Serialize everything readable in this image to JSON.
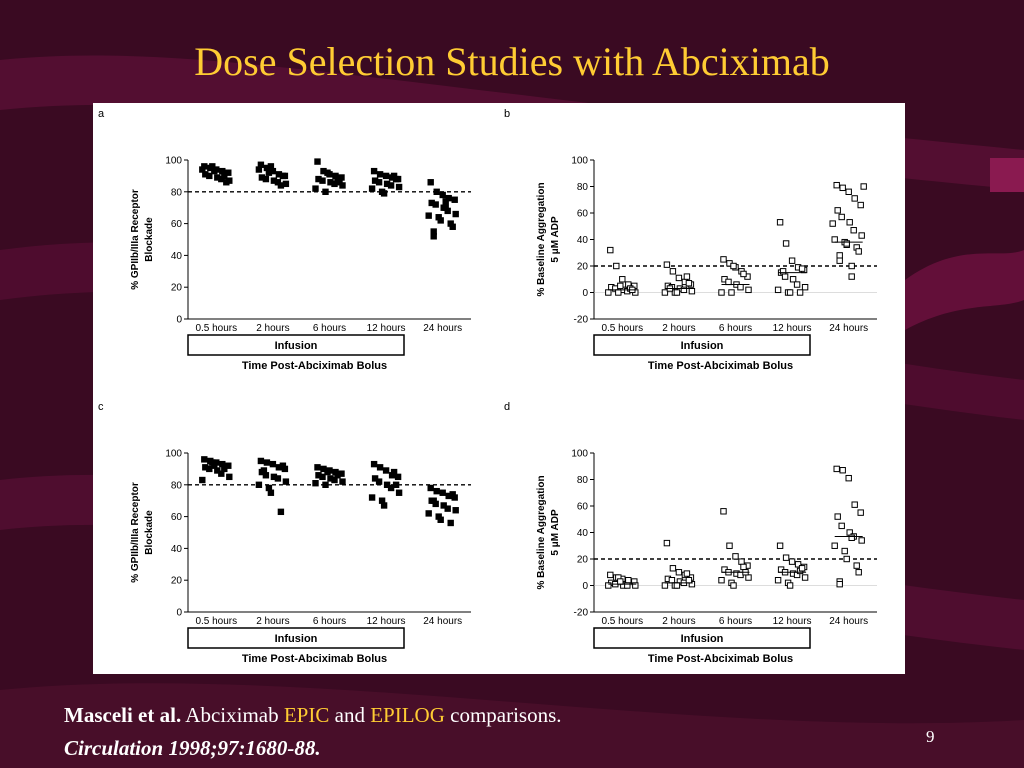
{
  "slide": {
    "title": "Dose Selection Studies with Abciximab",
    "citation": {
      "author": "Masceli et al.",
      "text_a": "Abciximab",
      "trial1": "EPIC",
      "text_b": "and",
      "trial2": "EPILOG",
      "text_c": "comparisons.",
      "journal": "Circulation 1998;97:1680-88."
    },
    "page_number": "9",
    "colors": {
      "background": "#3a0a22",
      "title": "#ffcc33",
      "accent": "#6e1040"
    },
    "infusion_label": "Infusion",
    "xlabel": "Time Post-Abciximab Bolus"
  },
  "chart_data": [
    {
      "panel": "a",
      "type": "scatter",
      "ylabel_lines": [
        "% GPIIb/IIIa Receptor",
        "Blockade"
      ],
      "xlabel": "Time Post-Abciximab Bolus",
      "categories": [
        "0.5 hours",
        "2 hours",
        "6 hours",
        "12 hours",
        "24 hours"
      ],
      "ylim": [
        0,
        100
      ],
      "yticks": [
        0,
        20,
        40,
        60,
        80,
        100
      ],
      "reference_line": 80,
      "marker": "filled-square",
      "points": [
        [
          96,
          95,
          94,
          93,
          92,
          91,
          90,
          89,
          88,
          87,
          94,
          96,
          93,
          90,
          86
        ],
        [
          97,
          95,
          93,
          91,
          90,
          89,
          88,
          87,
          86,
          85,
          94,
          92,
          96,
          84,
          90
        ],
        [
          99,
          93,
          91,
          90,
          89,
          88,
          87,
          86,
          85,
          84,
          82,
          80,
          92,
          88,
          86
        ],
        [
          93,
          91,
          90,
          89,
          88,
          87,
          86,
          85,
          84,
          83,
          82,
          80,
          79,
          90,
          88
        ],
        [
          86,
          80,
          78,
          76,
          75,
          73,
          72,
          70,
          68,
          66,
          65,
          64,
          62,
          60,
          58,
          55,
          52,
          74,
          70
        ]
      ]
    },
    {
      "panel": "b",
      "type": "scatter",
      "ylabel_lines": [
        "% Baseline Aggregation",
        "5 μM ADP"
      ],
      "xlabel": "Time Post-Abciximab Bolus",
      "categories": [
        "0.5 hours",
        "2 hours",
        "6 hours",
        "12 hours",
        "24 hours"
      ],
      "ylim": [
        -20,
        100
      ],
      "yticks": [
        -20,
        0,
        20,
        40,
        60,
        80,
        100
      ],
      "reference_line": 20,
      "marker": "open-square",
      "medians": [
        2,
        3,
        6,
        15,
        38
      ],
      "points": [
        [
          32,
          20,
          10,
          6,
          5,
          4,
          3,
          2,
          1,
          0,
          0,
          0,
          5,
          3,
          2
        ],
        [
          21,
          16,
          11,
          8,
          6,
          5,
          4,
          3,
          2,
          1,
          0,
          0,
          0,
          12,
          7,
          3
        ],
        [
          25,
          22,
          19,
          16,
          12,
          10,
          8,
          6,
          4,
          2,
          0,
          0,
          20,
          14
        ],
        [
          53,
          37,
          24,
          19,
          17,
          15,
          12,
          10,
          6,
          4,
          2,
          0,
          0,
          0,
          18,
          16
        ],
        [
          81,
          79,
          76,
          71,
          66,
          62,
          57,
          53,
          47,
          43,
          40,
          38,
          36,
          34,
          31,
          28,
          24,
          20,
          12,
          80,
          52,
          37
        ]
      ]
    },
    {
      "panel": "c",
      "type": "scatter",
      "ylabel_lines": [
        "% GPIIb/IIIa Receptor",
        "Blockade"
      ],
      "xlabel": "Time Post-Abciximab Bolus",
      "categories": [
        "0.5 hours",
        "2 hours",
        "6 hours",
        "12 hours",
        "24 hours"
      ],
      "ylim": [
        0,
        100
      ],
      "yticks": [
        0,
        20,
        40,
        60,
        80,
        100
      ],
      "reference_line": 80,
      "marker": "filled-square",
      "points": [
        [
          96,
          95,
          94,
          93,
          92,
          91,
          90,
          89,
          87,
          85,
          83,
          94,
          92,
          90
        ],
        [
          95,
          94,
          93,
          91,
          90,
          88,
          86,
          85,
          84,
          82,
          80,
          78,
          75,
          63,
          92,
          89
        ],
        [
          91,
          90,
          89,
          88,
          87,
          86,
          85,
          84,
          83,
          82,
          81,
          80,
          88,
          86
        ],
        [
          93,
          91,
          89,
          86,
          85,
          84,
          82,
          80,
          78,
          75,
          72,
          70,
          67,
          88,
          80
        ],
        [
          78,
          76,
          75,
          73,
          72,
          70,
          68,
          67,
          65,
          64,
          62,
          60,
          58,
          56,
          74,
          70
        ]
      ]
    },
    {
      "panel": "d",
      "type": "scatter",
      "ylabel_lines": [
        "% Baseline Aggregation",
        "5 μM ADP"
      ],
      "xlabel": "Time Post-Abciximab Bolus",
      "categories": [
        "0.5 hours",
        "2 hours",
        "6 hours",
        "12 hours",
        "24 hours"
      ],
      "ylim": [
        -20,
        100
      ],
      "yticks": [
        -20,
        0,
        20,
        40,
        60,
        80,
        100
      ],
      "reference_line": 20,
      "marker": "open-square",
      "medians": [
        1,
        2,
        10,
        10,
        37
      ],
      "points": [
        [
          8,
          6,
          5,
          4,
          3,
          2,
          1,
          0,
          0,
          0,
          0,
          6,
          3
        ],
        [
          32,
          13,
          10,
          8,
          6,
          5,
          4,
          3,
          2,
          1,
          0,
          0,
          0,
          9,
          4
        ],
        [
          56,
          30,
          22,
          18,
          15,
          12,
          10,
          9,
          8,
          6,
          4,
          2,
          0,
          14,
          10
        ],
        [
          30,
          21,
          18,
          16,
          14,
          12,
          10,
          9,
          8,
          6,
          4,
          2,
          0,
          11,
          13
        ],
        [
          88,
          87,
          81,
          61,
          55,
          52,
          45,
          40,
          37,
          34,
          30,
          26,
          20,
          15,
          10,
          3,
          1,
          36
        ]
      ]
    }
  ]
}
